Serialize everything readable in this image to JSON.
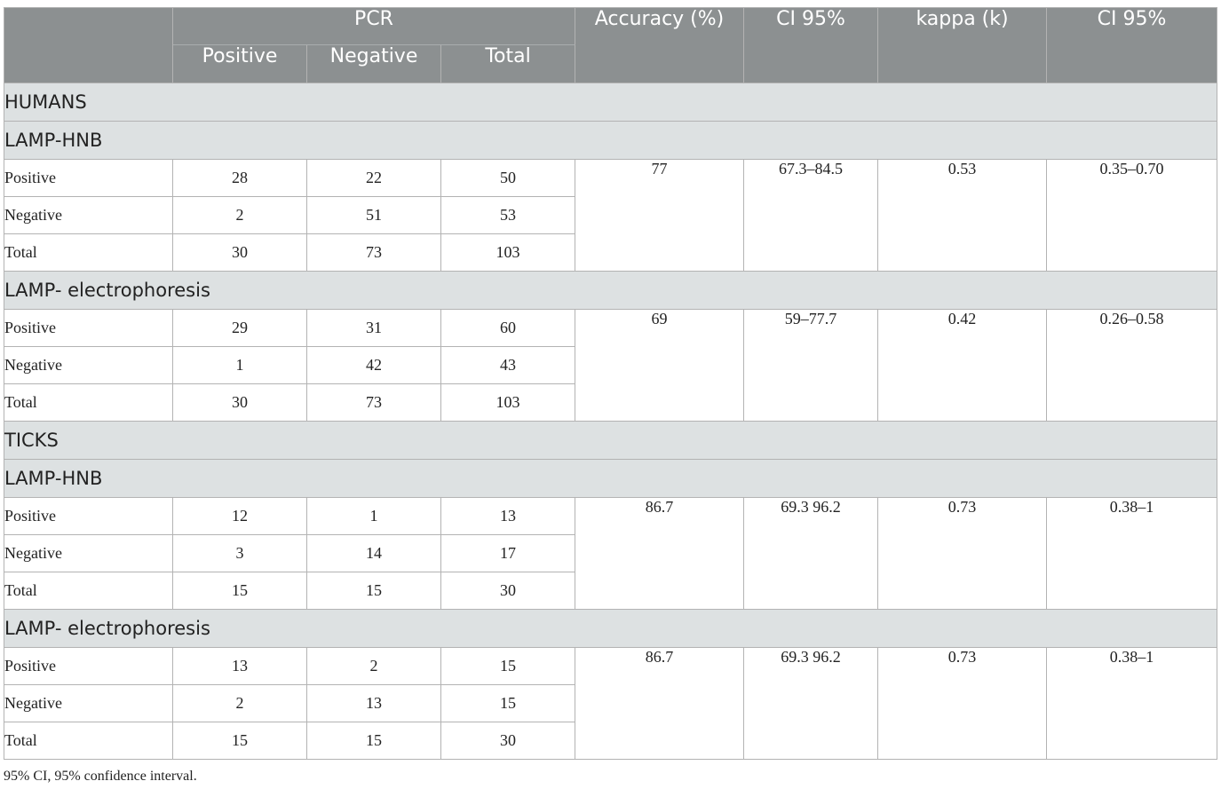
{
  "header": {
    "pcr": "PCR",
    "positive": "Positive",
    "negative": "Negative",
    "total": "Total",
    "accuracy": "Accuracy (%)",
    "ci1": "CI 95%",
    "kappa": "kappa (k)",
    "ci2": "CI 95%"
  },
  "sections": [
    {
      "title": "HUMANS",
      "groups": [
        {
          "title": "LAMP-HNB",
          "rows": [
            {
              "label": "Positive",
              "pos": "28",
              "neg": "22",
              "total": "50"
            },
            {
              "label": "Negative",
              "pos": "2",
              "neg": "51",
              "total": "53"
            },
            {
              "label": "Total",
              "pos": "30",
              "neg": "73",
              "total": "103"
            }
          ],
          "accuracy": "77",
          "ci1": "67.3–84.5",
          "kappa": "0.53",
          "ci2": "0.35–0.70"
        },
        {
          "title": "LAMP- electrophoresis",
          "rows": [
            {
              "label": "Positive",
              "pos": "29",
              "neg": "31",
              "total": "60"
            },
            {
              "label": "Negative",
              "pos": "1",
              "neg": "42",
              "total": "43"
            },
            {
              "label": "Total",
              "pos": "30",
              "neg": "73",
              "total": "103"
            }
          ],
          "accuracy": "69",
          "ci1": "59–77.7",
          "kappa": "0.42",
          "ci2": "0.26–0.58"
        }
      ]
    },
    {
      "title": "TICKS",
      "groups": [
        {
          "title": "LAMP-HNB",
          "rows": [
            {
              "label": "Positive",
              "pos": "12",
              "neg": "1",
              "total": "13"
            },
            {
              "label": "Negative",
              "pos": "3",
              "neg": "14",
              "total": "17"
            },
            {
              "label": "Total",
              "pos": "15",
              "neg": "15",
              "total": "30"
            }
          ],
          "accuracy": "86.7",
          "ci1": "69.3 96.2",
          "kappa": "0.73",
          "ci2": "0.38–1"
        },
        {
          "title": "LAMP- electrophoresis",
          "rows": [
            {
              "label": "Positive",
              "pos": "13",
              "neg": "2",
              "total": "15"
            },
            {
              "label": "Negative",
              "pos": "2",
              "neg": "13",
              "total": "15"
            },
            {
              "label": "Total",
              "pos": "15",
              "neg": "15",
              "total": "30"
            }
          ],
          "accuracy": "86.7",
          "ci1": "69.3 96.2",
          "kappa": "0.73",
          "ci2": "0.38–1"
        }
      ]
    }
  ],
  "footnote": "95% CI, 95% confidence interval.",
  "colors": {
    "header_bg": "#8c9091",
    "section_bg": "#dde1e2",
    "border": "#b3b3b3"
  }
}
